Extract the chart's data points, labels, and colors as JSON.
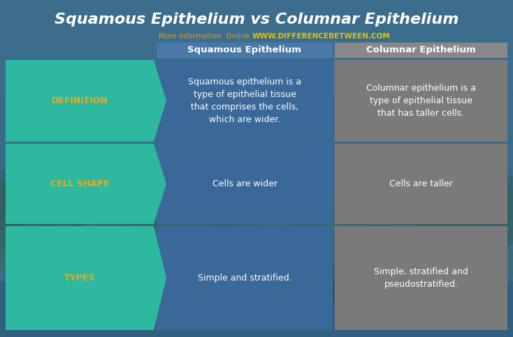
{
  "title": "Squamous Epithelium vs Columnar Epithelium",
  "subtitle_left": "More Information  Online",
  "subtitle_right": "WWW.DIFFERENCEBETWEEN.COM",
  "col1_header": "Squamous Epithelium",
  "col2_header": "Columnar Epithelium",
  "rows": [
    {
      "label": "DEFINITION",
      "col1": "Squamous epithelium is a\ntype of epithelial tissue\nthat comprises the cells,\nwhich are wider.",
      "col2": "Columnar epithelium is a\ntype of epithelial tissue\nthat has taller cells."
    },
    {
      "label": "CELL SHAPE",
      "col1": "Cells are wider",
      "col2": "Cells are taller"
    },
    {
      "label": "TYPES",
      "col1": "Simple and stratified.",
      "col2": "Simple, stratified and\npseudostratified."
    }
  ],
  "bg_top_color": "#3a6b8a",
  "bg_mid_color": "#2a5070",
  "teal_color": "#2db8a0",
  "teal_dark": "#1a9e88",
  "blue_col_color": "#3a6898",
  "gray_col_color": "#7a7a7a",
  "header_blue": "#4a78a8",
  "header_gray": "#888888",
  "title_color": "#ffffff",
  "label_color": "#e8a820",
  "cell_text_color": "#ffffff",
  "subtitle_left_color": "#d4a030",
  "subtitle_right_color": "#e8c000",
  "figsize": [
    7.34,
    4.83
  ],
  "dpi": 100
}
